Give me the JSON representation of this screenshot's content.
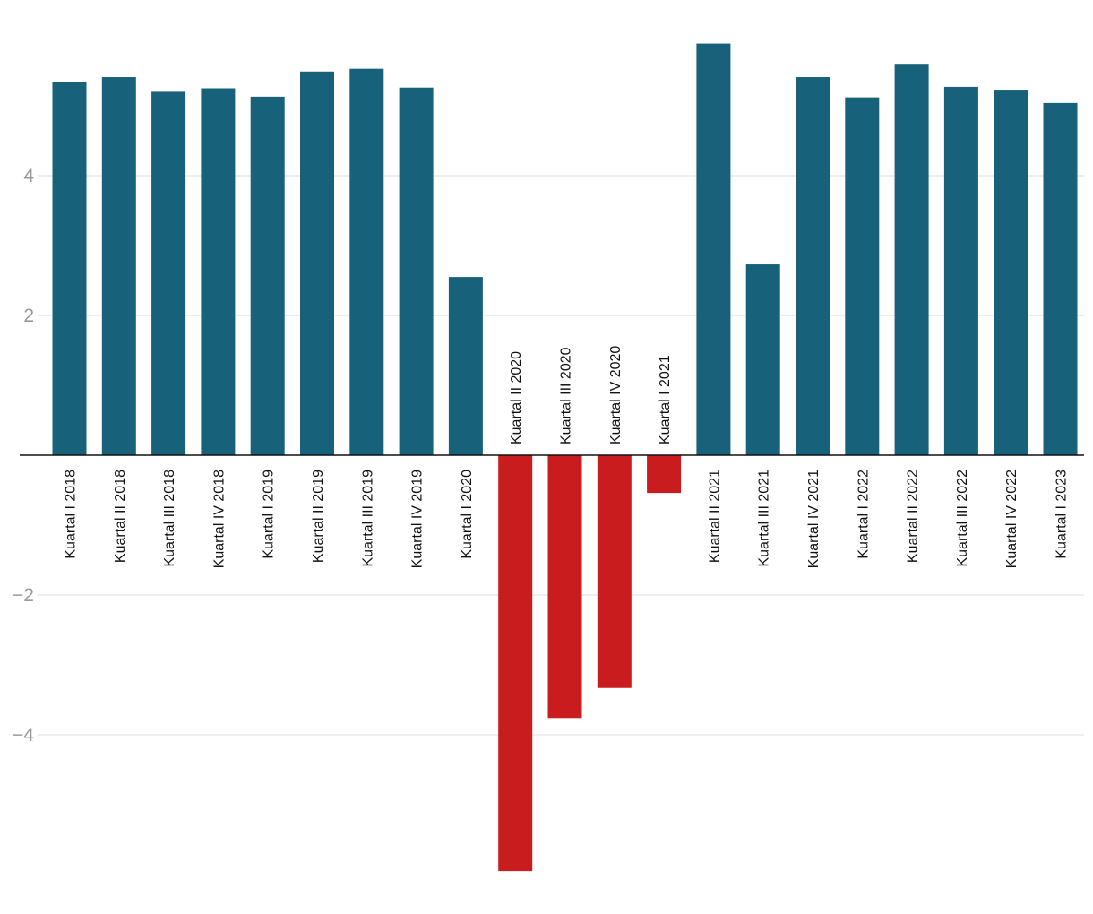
{
  "chart_data": {
    "type": "bar",
    "title": "",
    "xlabel": "",
    "ylabel": "",
    "ylim": [
      -6.2,
      5.9
    ],
    "yticks": [
      -4,
      -2,
      2,
      4
    ],
    "grid": true,
    "categories": [
      "Kuartal I 2018",
      "Kuartal II 2018",
      "Kuartal III 2018",
      "Kuartal IV 2018",
      "Kuartal I 2019",
      "Kuartal II 2019",
      "Kuartal III 2019",
      "Kuartal IV 2019",
      "Kuartal I 2020",
      "Kuartal II 2020",
      "Kuartal III 2020",
      "Kuartal IV 2020",
      "Kuartal I 2021",
      "Kuartal II 2021",
      "Kuartal III 2021",
      "Kuartal IV 2021",
      "Kuartal I 2022",
      "Kuartal II 2022",
      "Kuartal III 2022",
      "Kuartal IV 2022",
      "Kuartal I 2023"
    ],
    "values": [
      5.34,
      5.41,
      5.2,
      5.25,
      5.13,
      5.49,
      5.53,
      5.26,
      2.55,
      -5.95,
      -3.76,
      -3.33,
      -0.54,
      5.89,
      2.73,
      5.41,
      5.12,
      5.6,
      5.27,
      5.23,
      5.04
    ],
    "colors": {
      "positive": "#17617a",
      "negative": "#c81c1e"
    }
  }
}
